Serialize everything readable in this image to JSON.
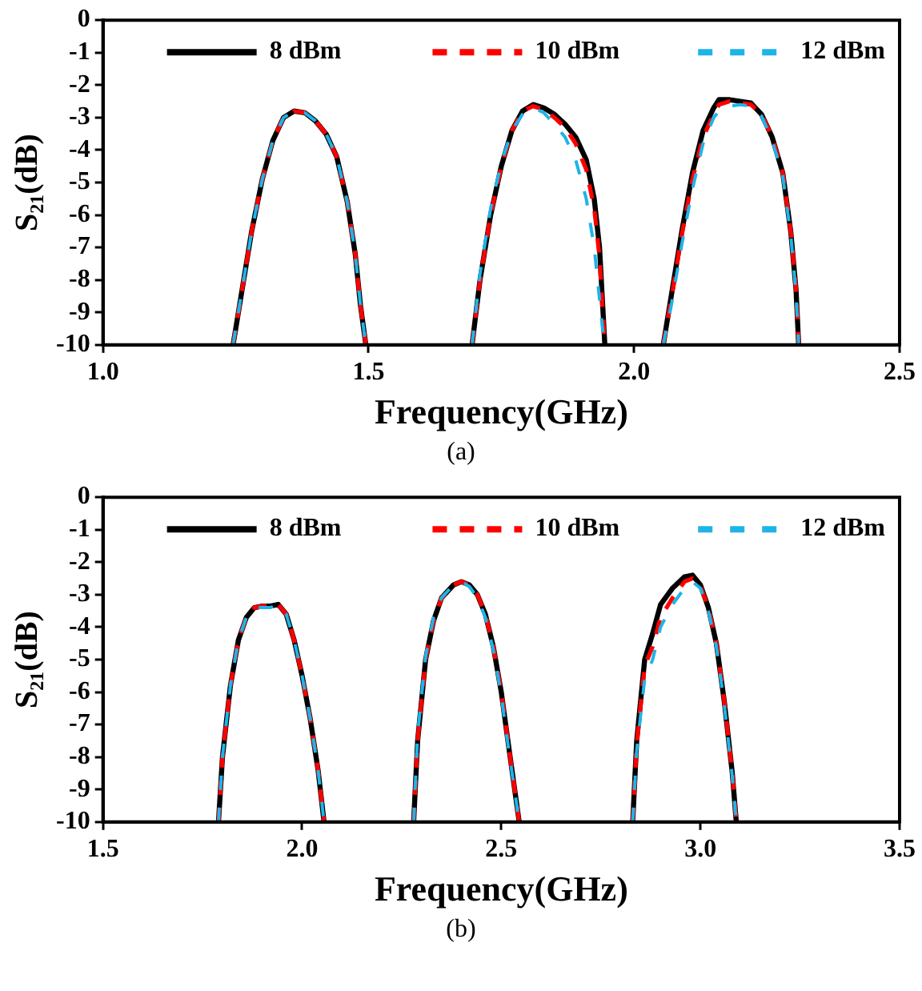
{
  "chart_data": [
    {
      "type": "line",
      "xlabel": "Frequency(GHz)",
      "ylabel": "S₂₁(dB)",
      "annotations": [
        "(a)"
      ],
      "xlim": [
        1.0,
        2.5
      ],
      "xticks": [
        {
          "value": 1,
          "label": "1.0"
        },
        1.5,
        {
          "value": 2,
          "label": "2.0"
        },
        2.5
      ],
      "ylim": [
        -10,
        0
      ],
      "yticks": [
        -10,
        -9,
        -8,
        -7,
        -6,
        -5,
        -4,
        -3,
        -2,
        -1,
        0
      ],
      "grid": false,
      "legend": "top",
      "marker": "none",
      "series": [
        {
          "name": "8 dBm",
          "color": "#000000",
          "line_style": "solid",
          "x": [
            1.245,
            1.26,
            1.28,
            1.3,
            1.32,
            1.34,
            1.36,
            1.38,
            1.4,
            1.42,
            1.44,
            1.46,
            1.475,
            1.485,
            1.495,
            1.6,
            1.695,
            1.71,
            1.73,
            1.75,
            1.77,
            1.79,
            1.81,
            1.83,
            1.85,
            1.87,
            1.89,
            1.91,
            1.925,
            1.935,
            1.94,
            1.945,
            2.0,
            2.055,
            2.07,
            2.09,
            2.11,
            2.13,
            2.15,
            2.16,
            2.18,
            2.2,
            2.22,
            2.24,
            2.26,
            2.28,
            2.295,
            2.305,
            2.31
          ],
          "values": [
            -10,
            -8.5,
            -6.5,
            -4.9,
            -3.7,
            -3.0,
            -2.8,
            -2.85,
            -3.1,
            -3.5,
            -4.2,
            -5.6,
            -7.2,
            -8.8,
            -10,
            null,
            -10,
            -8,
            -6,
            -4.5,
            -3.4,
            -2.8,
            -2.6,
            -2.7,
            -2.9,
            -3.2,
            -3.6,
            -4.3,
            -5.5,
            -7,
            -8.5,
            -10,
            null,
            -10,
            -8.5,
            -6.5,
            -4.7,
            -3.4,
            -2.7,
            -2.45,
            -2.45,
            -2.5,
            -2.55,
            -2.9,
            -3.6,
            -4.7,
            -6.5,
            -8.3,
            -10
          ]
        },
        {
          "name": "10 dBm",
          "color": "#ff0000",
          "line_style": "dashed",
          "x": [
            1.245,
            1.26,
            1.28,
            1.3,
            1.32,
            1.34,
            1.36,
            1.38,
            1.4,
            1.42,
            1.44,
            1.46,
            1.475,
            1.485,
            1.495,
            1.6,
            1.695,
            1.71,
            1.73,
            1.75,
            1.77,
            1.79,
            1.81,
            1.83,
            1.85,
            1.87,
            1.89,
            1.91,
            1.925,
            1.935,
            1.94,
            1.945,
            2.0,
            2.055,
            2.07,
            2.09,
            2.11,
            2.13,
            2.15,
            2.16,
            2.18,
            2.2,
            2.22,
            2.24,
            2.26,
            2.28,
            2.295,
            2.305,
            2.31
          ],
          "values": [
            -10,
            -8.5,
            -6.5,
            -4.9,
            -3.7,
            -3.0,
            -2.8,
            -2.85,
            -3.1,
            -3.5,
            -4.2,
            -5.6,
            -7.2,
            -8.8,
            -10,
            null,
            -10,
            -8,
            -6,
            -4.5,
            -3.4,
            -2.8,
            -2.65,
            -2.75,
            -3.0,
            -3.3,
            -3.8,
            -4.6,
            -5.8,
            -7.3,
            -8.7,
            -10,
            null,
            -10,
            -8.6,
            -6.6,
            -4.9,
            -3.6,
            -2.9,
            -2.6,
            -2.5,
            -2.55,
            -2.6,
            -2.9,
            -3.6,
            -4.7,
            -6.5,
            -8.3,
            -10
          ]
        },
        {
          "name": "12 dBm",
          "color": "#1fb4e8",
          "line_style": "dashed",
          "x": [
            1.245,
            1.26,
            1.28,
            1.3,
            1.32,
            1.34,
            1.36,
            1.38,
            1.4,
            1.42,
            1.44,
            1.46,
            1.475,
            1.485,
            1.495,
            1.6,
            1.695,
            1.71,
            1.73,
            1.75,
            1.77,
            1.79,
            1.81,
            1.83,
            1.85,
            1.87,
            1.89,
            1.91,
            1.925,
            1.935,
            1.94,
            1.945,
            2.0,
            2.055,
            2.07,
            2.09,
            2.11,
            2.13,
            2.15,
            2.16,
            2.18,
            2.2,
            2.22,
            2.24,
            2.26,
            2.28,
            2.295,
            2.305,
            2.31
          ],
          "values": [
            -10,
            -8.5,
            -6.5,
            -4.9,
            -3.7,
            -3.0,
            -2.8,
            -2.85,
            -3.1,
            -3.5,
            -4.2,
            -5.6,
            -7.2,
            -8.8,
            -10,
            null,
            -10,
            -7.8,
            -5.8,
            -4.4,
            -3.4,
            -2.9,
            -2.7,
            -2.85,
            -3.2,
            -3.6,
            -4.3,
            -5.5,
            -7.0,
            -8.6,
            -9.4,
            -10,
            null,
            -10,
            -8.8,
            -6.9,
            -5.2,
            -3.8,
            -3.0,
            -2.8,
            -2.65,
            -2.6,
            -2.65,
            -2.95,
            -3.7,
            -4.8,
            -6.6,
            -8.4,
            -10
          ]
        }
      ]
    },
    {
      "type": "line",
      "xlabel": "Frequency(GHz)",
      "ylabel": "S₂₁(dB)",
      "annotations": [
        "(b)"
      ],
      "xlim": [
        1.5,
        3.5
      ],
      "xticks": [
        1.5,
        {
          "value": 2,
          "label": "2.0"
        },
        2.5,
        {
          "value": 3,
          "label": "3.0"
        },
        3.5
      ],
      "ylim": [
        -10,
        0
      ],
      "yticks": [
        -10,
        -9,
        -8,
        -7,
        -6,
        -5,
        -4,
        -3,
        -2,
        -1,
        0
      ],
      "grid": false,
      "legend": "top",
      "marker": "none",
      "series": [
        {
          "name": "8 dBm",
          "color": "#000000",
          "line_style": "solid",
          "x": [
            1.79,
            1.8,
            1.82,
            1.84,
            1.86,
            1.88,
            1.9,
            1.92,
            1.94,
            1.96,
            1.98,
            2.0,
            2.02,
            2.04,
            2.055,
            2.15,
            2.28,
            2.29,
            2.31,
            2.33,
            2.35,
            2.38,
            2.4,
            2.42,
            2.44,
            2.46,
            2.48,
            2.5,
            2.52,
            2.545,
            2.7,
            2.83,
            2.84,
            2.86,
            2.88,
            2.9,
            2.93,
            2.96,
            2.98,
            3.0,
            3.02,
            3.04,
            3.06,
            3.08,
            3.09
          ],
          "values": [
            -10,
            -8,
            -5.8,
            -4.4,
            -3.7,
            -3.4,
            -3.35,
            -3.35,
            -3.3,
            -3.6,
            -4.4,
            -5.5,
            -6.8,
            -8.4,
            -10,
            null,
            -10,
            -7.5,
            -5,
            -3.8,
            -3.1,
            -2.7,
            -2.6,
            -2.7,
            -3.0,
            -3.6,
            -4.6,
            -6.0,
            -7.8,
            -10,
            null,
            -10,
            -7.5,
            -5,
            -4.2,
            -3.3,
            -2.8,
            -2.45,
            -2.4,
            -2.7,
            -3.4,
            -4.5,
            -6.3,
            -8.5,
            -10
          ]
        },
        {
          "name": "10 dBm",
          "color": "#ff0000",
          "line_style": "dashed",
          "x": [
            1.79,
            1.8,
            1.82,
            1.84,
            1.86,
            1.88,
            1.9,
            1.92,
            1.94,
            1.96,
            1.98,
            2.0,
            2.02,
            2.04,
            2.055,
            2.15,
            2.28,
            2.29,
            2.31,
            2.33,
            2.35,
            2.38,
            2.4,
            2.42,
            2.44,
            2.46,
            2.48,
            2.5,
            2.52,
            2.545,
            2.7,
            2.83,
            2.84,
            2.86,
            2.88,
            2.9,
            2.93,
            2.96,
            2.98,
            3.0,
            3.02,
            3.04,
            3.06,
            3.08,
            3.09
          ],
          "values": [
            -10,
            -8,
            -5.8,
            -4.4,
            -3.7,
            -3.4,
            -3.35,
            -3.35,
            -3.3,
            -3.6,
            -4.4,
            -5.5,
            -6.8,
            -8.4,
            -10,
            null,
            -10,
            -7.5,
            -5,
            -3.8,
            -3.1,
            -2.7,
            -2.6,
            -2.7,
            -3.0,
            -3.6,
            -4.6,
            -6.0,
            -7.8,
            -10,
            null,
            -10,
            -7.6,
            -5.2,
            -4.6,
            -3.7,
            -3.1,
            -2.6,
            -2.5,
            -2.75,
            -3.4,
            -4.5,
            -6.3,
            -8.5,
            -10
          ]
        },
        {
          "name": "12 dBm",
          "color": "#1fb4e8",
          "line_style": "dashed",
          "x": [
            1.79,
            1.8,
            1.82,
            1.84,
            1.86,
            1.88,
            1.9,
            1.92,
            1.94,
            1.96,
            1.98,
            2.0,
            2.02,
            2.04,
            2.055,
            2.15,
            2.28,
            2.29,
            2.31,
            2.33,
            2.35,
            2.38,
            2.4,
            2.42,
            2.44,
            2.46,
            2.48,
            2.5,
            2.52,
            2.545,
            2.7,
            2.83,
            2.84,
            2.86,
            2.88,
            2.9,
            2.93,
            2.96,
            2.98,
            3.0,
            3.02,
            3.04,
            3.06,
            3.08,
            3.09
          ],
          "values": [
            -10,
            -8,
            -5.8,
            -4.4,
            -3.7,
            -3.4,
            -3.4,
            -3.4,
            -3.3,
            -3.6,
            -4.4,
            -5.5,
            -6.8,
            -8.4,
            -10,
            null,
            -10,
            -7.3,
            -4.9,
            -3.7,
            -3.1,
            -2.7,
            -2.6,
            -2.75,
            -3.1,
            -3.7,
            -4.7,
            -6.1,
            -7.9,
            -10,
            null,
            -10,
            -7.8,
            -5.6,
            -5.0,
            -4.0,
            -3.3,
            -2.8,
            -2.6,
            -2.8,
            -3.5,
            -4.6,
            -6.4,
            -8.6,
            -10
          ]
        }
      ]
    }
  ]
}
